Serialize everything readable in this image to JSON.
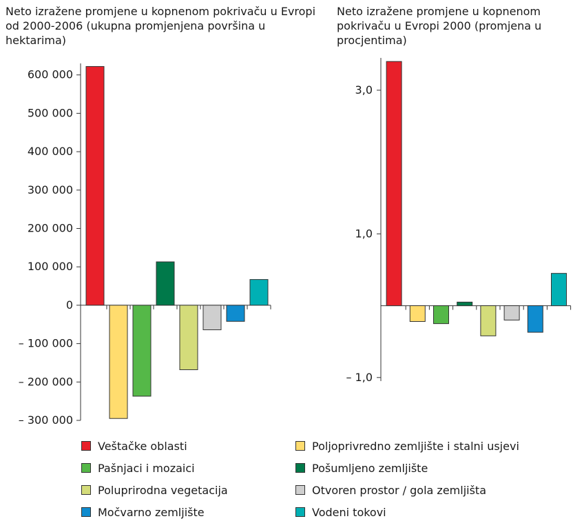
{
  "chart_data": [
    {
      "type": "bar",
      "title": "Neto izražene promjene u kopnenom pokrivaču u Evropi od 2000-2006 (ukupna promjenjena površina u hektarima)",
      "categories": [
        "Veštačke oblasti",
        "Poljoprivredno zemljište i stalni usjevi",
        "Pašnjaci i mozaici",
        "Pošumljeno zemljište",
        "Poluprirodna vegetacija",
        "Otvoren prostor / gola zemljišta",
        "Močvarno zemljište",
        "Vodeni tokovi"
      ],
      "values": [
        622000,
        -295000,
        -237000,
        113000,
        -168000,
        -64000,
        -42000,
        67000
      ],
      "ylim": [
        -300000,
        630000
      ],
      "yticks": [
        -300000,
        -200000,
        -100000,
        0,
        100000,
        200000,
        300000,
        400000,
        500000,
        600000
      ],
      "ytick_labels": [
        "– 300 000",
        "– 200 000",
        "– 100 000",
        "0",
        "100 000",
        "200 000",
        "300 000",
        "400 000",
        "500 000",
        "600 000"
      ],
      "grid": false
    },
    {
      "type": "bar",
      "title": "Neto izražene promjene u kopnenom pokrivaču u Evropi 2000 (promjena u procjentima)",
      "categories": [
        "Veštačke oblasti",
        "Poljoprivredno zemljište i stalni usjevi",
        "Pašnjaci i mozaici",
        "Pošumljeno zemljište",
        "Poluprirodna vegetacija",
        "Otvoren prostor / gola zemljišta",
        "Močvarno zemljište",
        "Vodeni tokovi"
      ],
      "values": [
        3.4,
        -0.22,
        -0.25,
        0.05,
        -0.42,
        -0.2,
        -0.37,
        0.45
      ],
      "ylim": [
        -1.05,
        3.45
      ],
      "yticks": [
        -1.0,
        1.0,
        3.0
      ],
      "ytick_labels": [
        "– 1,0",
        "1,0",
        "3,0"
      ],
      "grid": false
    }
  ],
  "legend": [
    {
      "label": "Veštačke oblasti",
      "color": "#e8202a"
    },
    {
      "label": "Poljoprivredno zemljište i stalni usjevi",
      "color": "#ffdc6e"
    },
    {
      "label": "Pašnjaci i mozaici",
      "color": "#55b848"
    },
    {
      "label": "Pošumljeno zemljište",
      "color": "#00794a"
    },
    {
      "label": "Poluprirodna vegetacija",
      "color": "#d4dc7a"
    },
    {
      "label": "Otvoren prostor / gola zemljišta",
      "color": "#cfcfcf"
    },
    {
      "label": "Močvarno zemljište",
      "color": "#0f8ccf"
    },
    {
      "label": "Vodeni tokovi",
      "color": "#00b0b4"
    }
  ]
}
